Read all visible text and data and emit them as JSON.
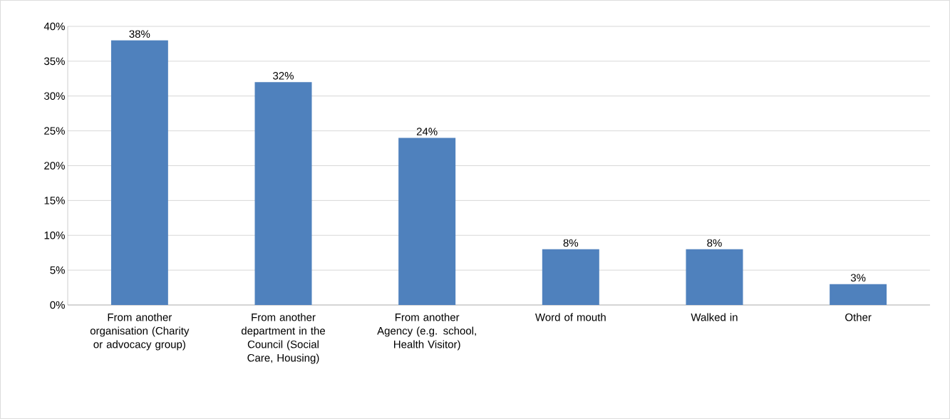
{
  "chart_data": {
    "type": "bar",
    "categories": [
      "From another organisation (Charity or advocacy group)",
      "From another department in the Council (Social Care, Housing)",
      "From another Agency (e.g. school, Health Visitor)",
      "Word of mouth",
      "Walked in",
      "Other"
    ],
    "values": [
      38,
      32,
      24,
      8,
      8,
      3
    ],
    "value_labels": [
      "38%",
      "32%",
      "24%",
      "8%",
      "8%",
      "3%"
    ],
    "color": "#4f81bd",
    "ylim": [
      0,
      40
    ],
    "yticks": [
      {
        "value": 0,
        "label": "0%"
      },
      {
        "value": 5,
        "label": "5%"
      },
      {
        "value": 10,
        "label": "10%"
      },
      {
        "value": 15,
        "label": "15%"
      },
      {
        "value": 20,
        "label": "20%"
      },
      {
        "value": 25,
        "label": "25%"
      },
      {
        "value": 30,
        "label": "30%"
      },
      {
        "value": 35,
        "label": "35%"
      },
      {
        "value": 40,
        "label": "40%"
      }
    ],
    "grid": "y"
  }
}
